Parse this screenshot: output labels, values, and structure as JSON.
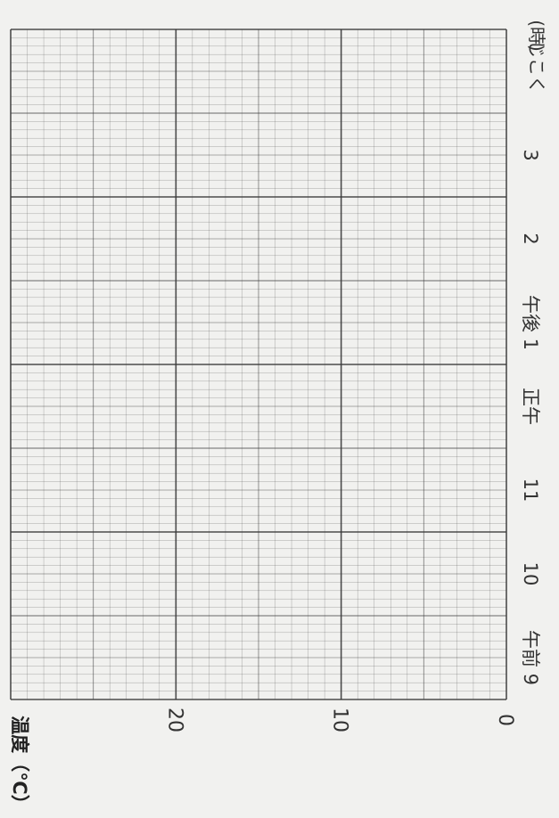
{
  "chart_data": {
    "type": "line",
    "title": "",
    "orientation": "rotated-90",
    "xlabel": "じこく",
    "xunit": "(時)",
    "ylabel": "温度（℃）",
    "x_ticks": [
      "午前 9",
      "10",
      "11",
      "正午",
      "午後 1",
      "2",
      "3"
    ],
    "y_ticks": [
      "0",
      "10",
      "20"
    ],
    "ylim": [
      0,
      30
    ],
    "series": [],
    "grid": true,
    "grid_color": "#3a3a3a",
    "background": "#f1f1ef"
  }
}
